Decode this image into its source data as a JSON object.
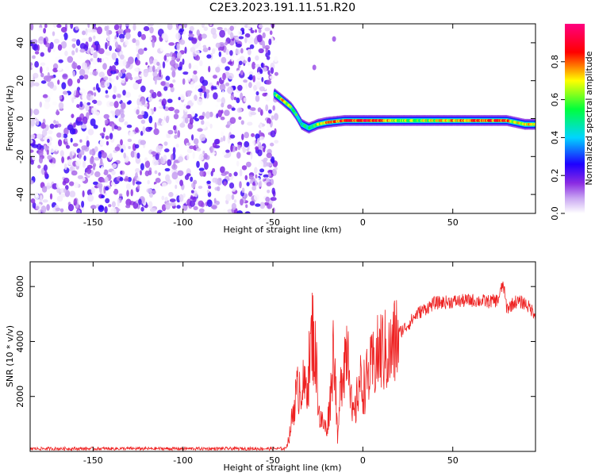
{
  "figure": {
    "title": "C2E3.2023.191.11.51.R20"
  },
  "chart_data": [
    {
      "type": "heatmap",
      "xlabel": "Height of straight line (km)",
      "ylabel": "Frequency (Hz)",
      "xlim": [
        -185,
        96
      ],
      "ylim": [
        -50,
        50
      ],
      "xticks": [
        -150,
        -100,
        -50,
        0,
        50
      ],
      "yticks": [
        -40,
        -20,
        0,
        20,
        40
      ],
      "colorbar": {
        "label": "Normalized spectral amplitude",
        "range": [
          0.0,
          1.0
        ],
        "ticks": [
          0.0,
          0.2,
          0.4,
          0.6,
          0.8
        ],
        "colormap": [
          "#ffffff",
          "#8a2be2",
          "#1e00ff",
          "#00d5ff",
          "#00ff3c",
          "#ffff00",
          "#ff0000",
          "#ff0080"
        ]
      },
      "noise_region": {
        "x_from": -185,
        "x_to": -48,
        "max_amplitude": 0.25
      },
      "ridge": {
        "x": [
          -49,
          -45,
          -40,
          -37,
          -34,
          -30,
          -25,
          -20,
          -10,
          0,
          10,
          20,
          40,
          60,
          80,
          85,
          90,
          96
        ],
        "y": [
          13,
          10,
          6,
          2,
          -3,
          -5,
          -3,
          -2,
          -1,
          -1,
          -1,
          -1,
          -1,
          -1,
          -1,
          -2,
          -3,
          -3
        ],
        "amplitude": [
          0.5,
          0.7,
          0.6,
          0.5,
          0.45,
          0.5,
          0.6,
          0.75,
          0.85,
          0.85,
          0.8,
          0.6,
          0.65,
          0.8,
          0.8,
          0.6,
          0.75,
          0.6
        ]
      },
      "isolated_blobs": [
        {
          "x": -27,
          "y": 27
        },
        {
          "x": -16,
          "y": 42
        }
      ]
    },
    {
      "type": "line",
      "xlabel": "Height of straight line (km)",
      "ylabel": "SNR (10 * v/v)",
      "xlim": [
        -185,
        96
      ],
      "ylim": [
        0,
        6900
      ],
      "xticks": [
        -150,
        -100,
        -50,
        0,
        50
      ],
      "yticks": [
        2000,
        4000,
        6000
      ],
      "series": [
        {
          "color": "#ee2222",
          "x": [
            -185,
            -150,
            -100,
            -60,
            -43,
            -41,
            -38,
            -35,
            -32,
            -30,
            -28,
            -26,
            -24,
            -22,
            -20,
            -18,
            -16,
            -14,
            -12,
            -10,
            -8,
            -6,
            -4,
            -2,
            0,
            5,
            10,
            15,
            20,
            25,
            30,
            35,
            40,
            50,
            60,
            70,
            75,
            78,
            80,
            85,
            90,
            96
          ],
          "y": [
            100,
            100,
            100,
            100,
            100,
            500,
            1800,
            2500,
            2200,
            3000,
            4400,
            3200,
            1200,
            1000,
            800,
            2000,
            4200,
            300,
            2800,
            3500,
            4200,
            1200,
            1500,
            2600,
            2300,
            3000,
            3700,
            3500,
            4300,
            4600,
            5000,
            5200,
            5400,
            5450,
            5500,
            5450,
            5500,
            6100,
            5200,
            5450,
            5400,
            5000
          ]
        }
      ]
    }
  ]
}
